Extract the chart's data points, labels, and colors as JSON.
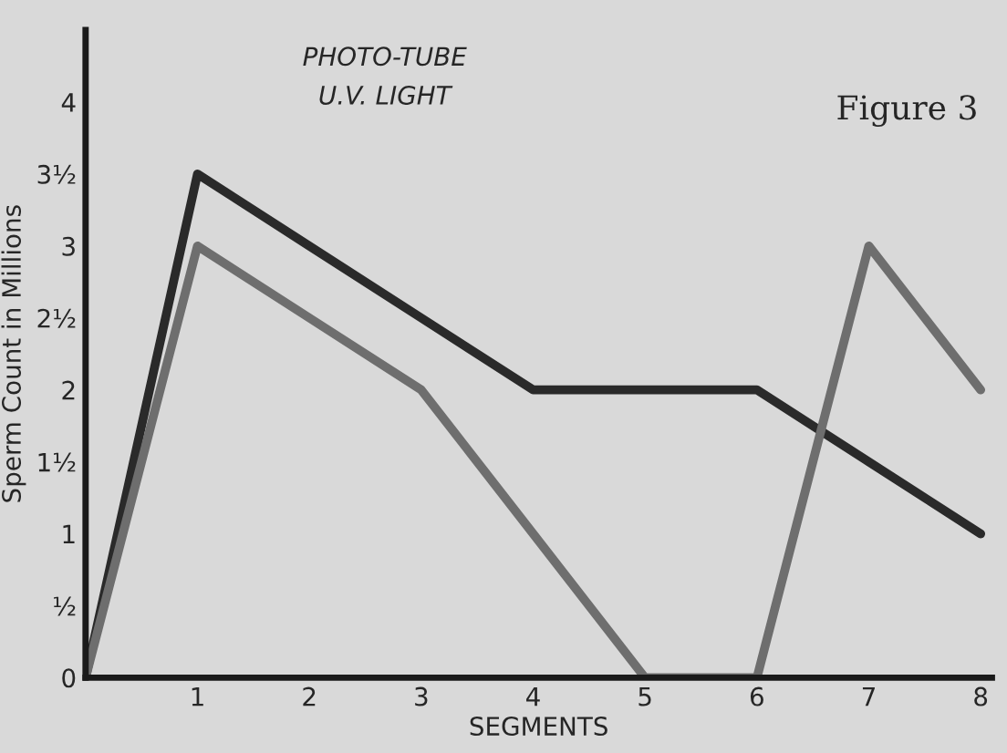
{
  "chart_data": {
    "type": "line",
    "title": "PHOTO-TUBE",
    "subtitle": "U.V. LIGHT",
    "xlabel": "SEGMENTS",
    "ylabel": "Sperm Count in Millions",
    "annotations": [
      "Figure 3"
    ],
    "x": [
      0,
      1,
      2,
      3,
      4,
      5,
      6,
      7,
      8
    ],
    "series": [
      {
        "color": "#2a2a2a",
        "values": [
          0,
          3.5,
          3,
          2.5,
          2,
          2,
          2,
          1.5,
          1
        ]
      },
      {
        "color": "#6e6e6e",
        "values": [
          0,
          3,
          2.5,
          2,
          1,
          0,
          0,
          3,
          2
        ]
      }
    ],
    "xlim": [
      0,
      8.1
    ],
    "xticks": [
      1,
      2,
      3,
      4,
      5,
      6,
      7,
      8
    ],
    "ylim": [
      0,
      4.5
    ],
    "yticks": [
      0,
      {
        "value": 0.5,
        "label": "½"
      },
      1,
      {
        "value": 1.5,
        "label": "1½"
      },
      2,
      {
        "value": 2.5,
        "label": "2½"
      },
      3,
      {
        "value": 3.5,
        "label": "3½"
      },
      4
    ],
    "grid": false,
    "legend": false,
    "marker": "none",
    "line_style": "solid"
  }
}
